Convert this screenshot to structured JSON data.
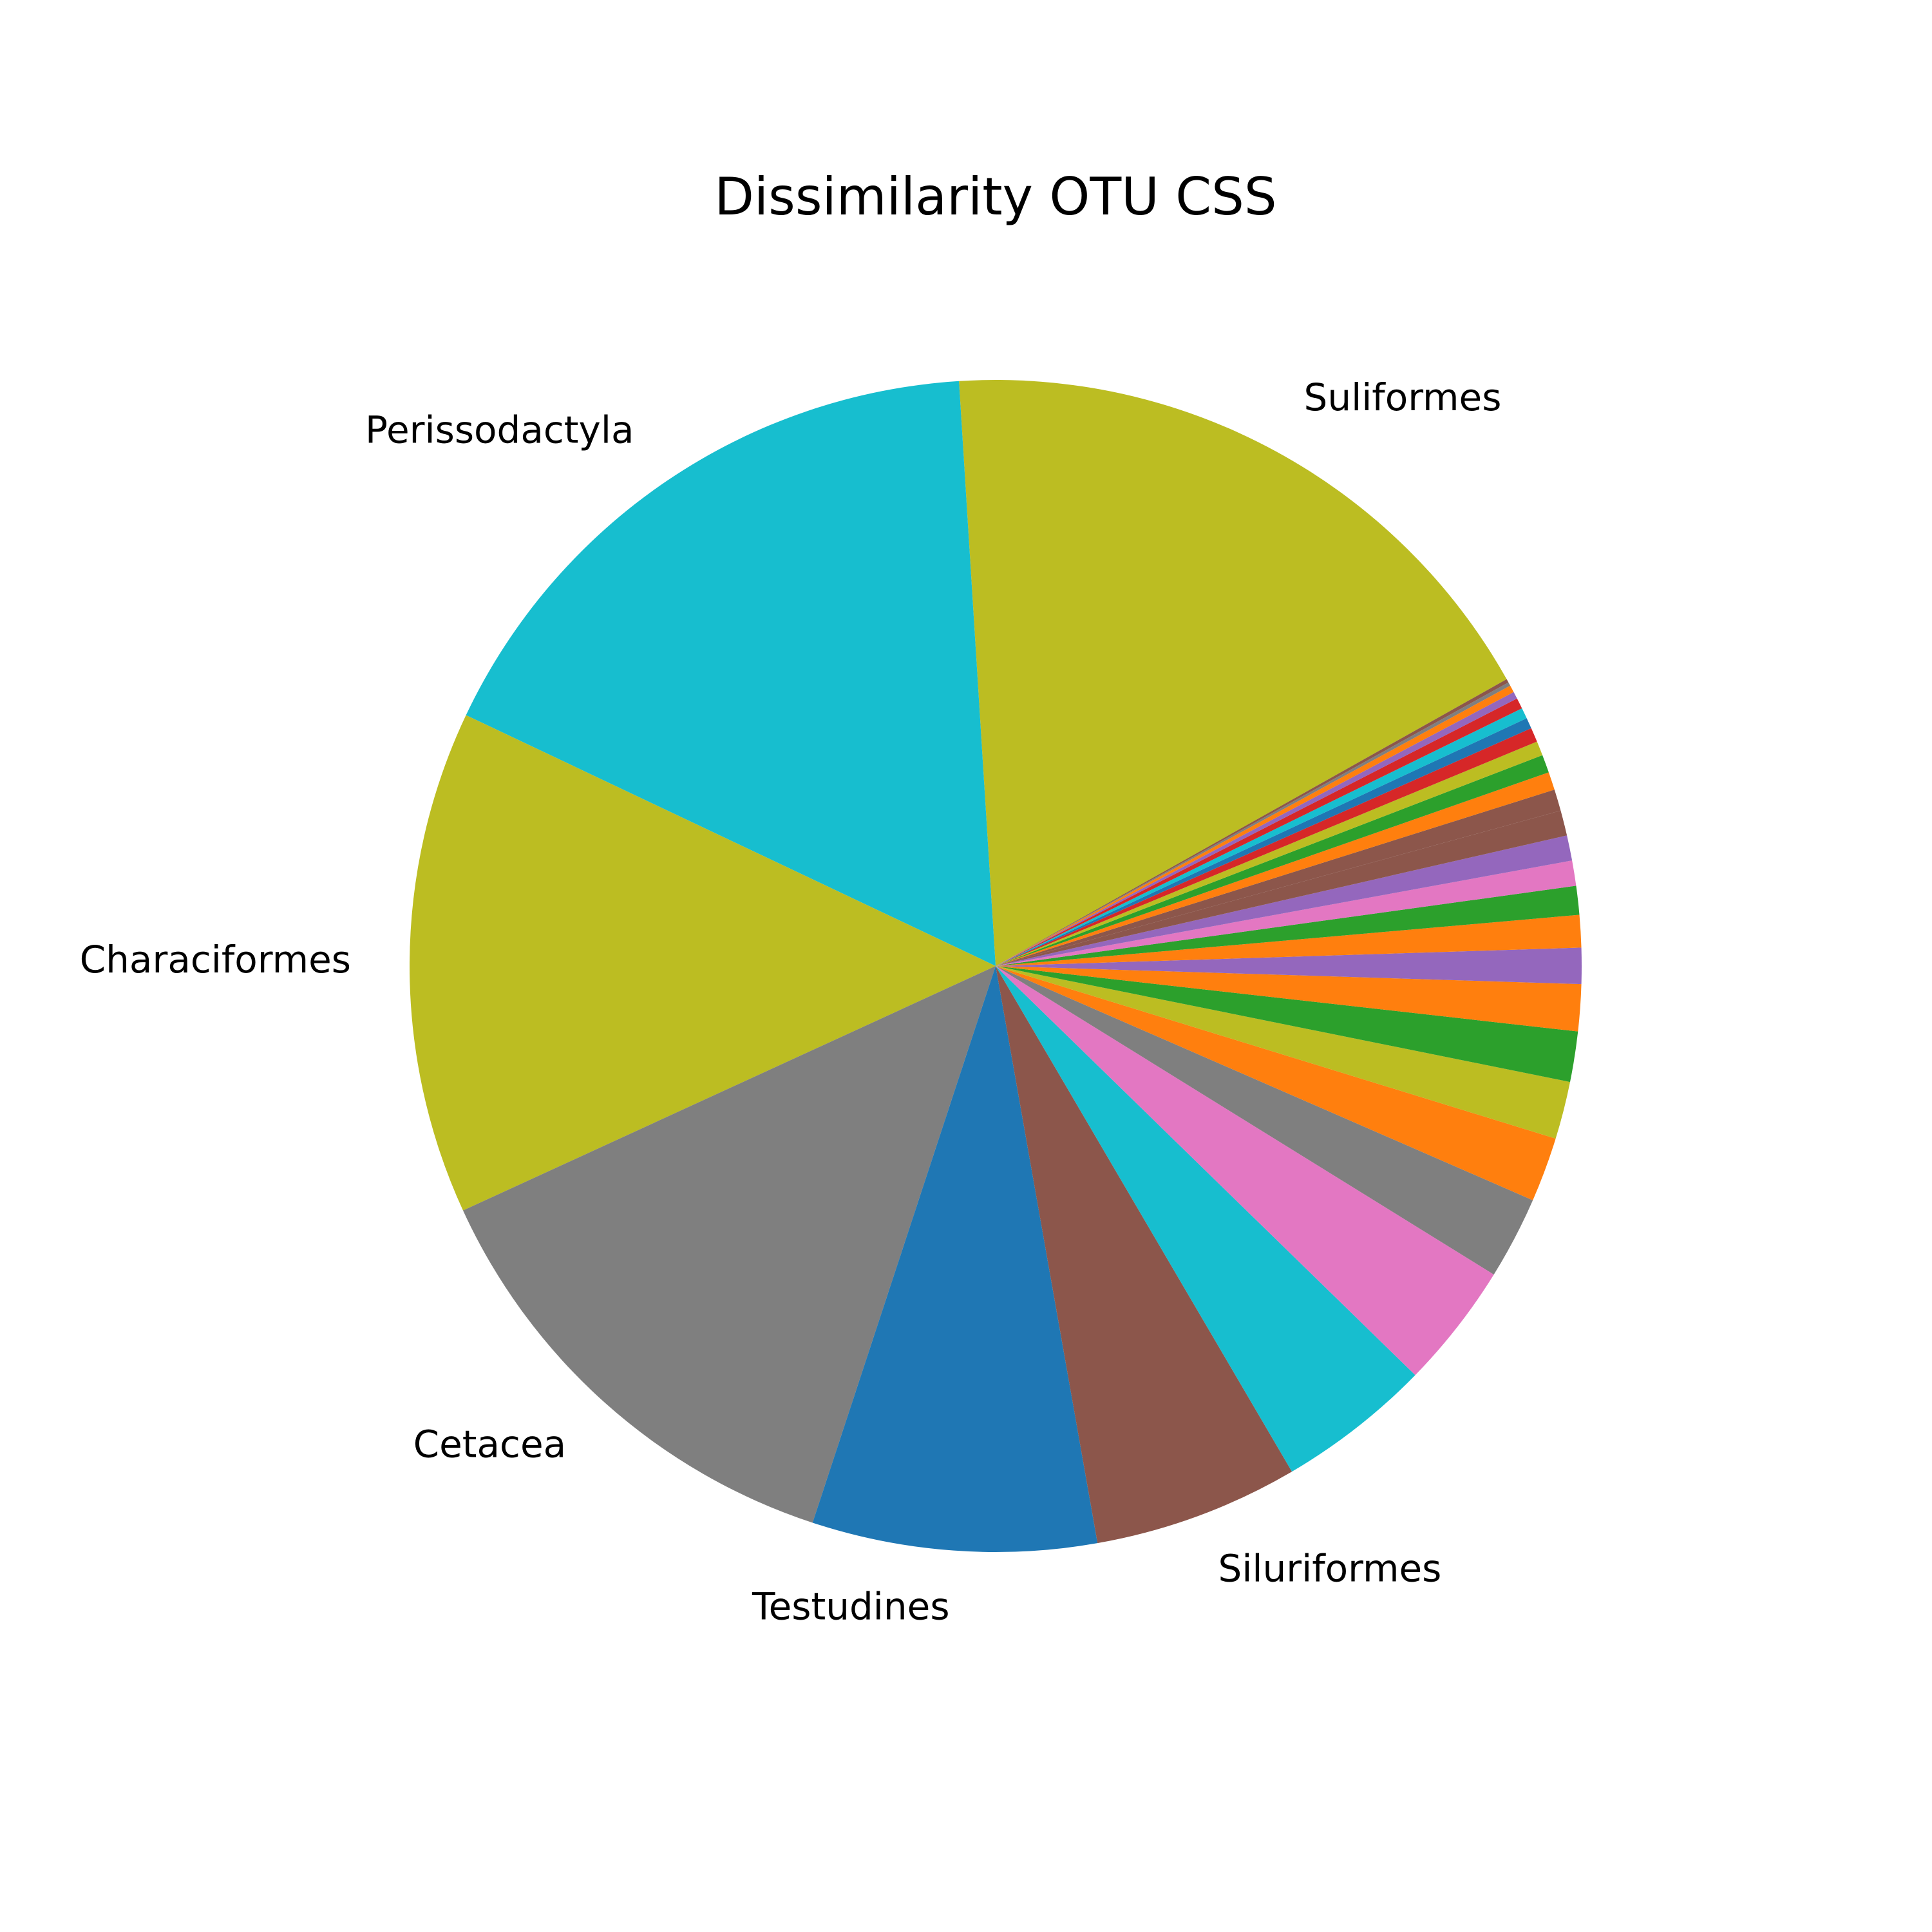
{
  "chart_data": {
    "type": "pie",
    "title": "Dissimilarity OTU CSS",
    "start_angle_deg": 29.3,
    "direction": "counterclockwise",
    "slices": [
      {
        "label": "Suliformes",
        "value": 18.0,
        "color": "#bcbd22"
      },
      {
        "label": "Perissodactyla",
        "value": 17.1,
        "color": "#17becf"
      },
      {
        "label": "Characiformes",
        "value": 14.0,
        "color": "#bcbd22"
      },
      {
        "label": "Cetacea",
        "value": 13.2,
        "color": "#7f7f7f"
      },
      {
        "label": "Testudines",
        "value": 7.9,
        "color": "#1f77b4"
      },
      {
        "label": "Siluriformes",
        "value": 5.7,
        "color": "#8c564b"
      },
      {
        "label": "",
        "value": 4.3,
        "color": "#17becf"
      },
      {
        "label": "",
        "value": 3.5,
        "color": "#e377c2"
      },
      {
        "label": "",
        "value": 2.3,
        "color": "#7f7f7f"
      },
      {
        "label": "",
        "value": 1.8,
        "color": "#ff7f0e"
      },
      {
        "label": "",
        "value": 1.6,
        "color": "#bcbd22"
      },
      {
        "label": "",
        "value": 1.4,
        "color": "#2ca02c"
      },
      {
        "label": "",
        "value": 1.3,
        "color": "#ff7f0e"
      },
      {
        "label": "",
        "value": 1.0,
        "color": "#9467bd"
      },
      {
        "label": "",
        "value": 0.9,
        "color": "#ff7f0e"
      },
      {
        "label": "",
        "value": 0.8,
        "color": "#2ca02c"
      },
      {
        "label": "",
        "value": 0.7,
        "color": "#e377c2"
      },
      {
        "label": "",
        "value": 0.7,
        "color": "#9467bd"
      },
      {
        "label": "",
        "value": 0.7,
        "color": "#8c564b"
      },
      {
        "label": "",
        "value": 0.6,
        "color": "#8c564b"
      },
      {
        "label": "",
        "value": 0.5,
        "color": "#ff7f0e"
      },
      {
        "label": "",
        "value": 0.5,
        "color": "#2ca02c"
      },
      {
        "label": "",
        "value": 0.4,
        "color": "#bcbd22"
      },
      {
        "label": "",
        "value": 0.4,
        "color": "#d62728"
      },
      {
        "label": "",
        "value": 0.3,
        "color": "#1f77b4"
      },
      {
        "label": "",
        "value": 0.3,
        "color": "#17becf"
      },
      {
        "label": "",
        "value": 0.3,
        "color": "#d62728"
      },
      {
        "label": "",
        "value": 0.2,
        "color": "#9467bd"
      },
      {
        "label": "",
        "value": 0.2,
        "color": "#ff7f0e"
      },
      {
        "label": "",
        "value": 0.1,
        "color": "#7f7f7f"
      },
      {
        "label": "",
        "value": 0.1,
        "color": "#8c564b"
      }
    ]
  }
}
